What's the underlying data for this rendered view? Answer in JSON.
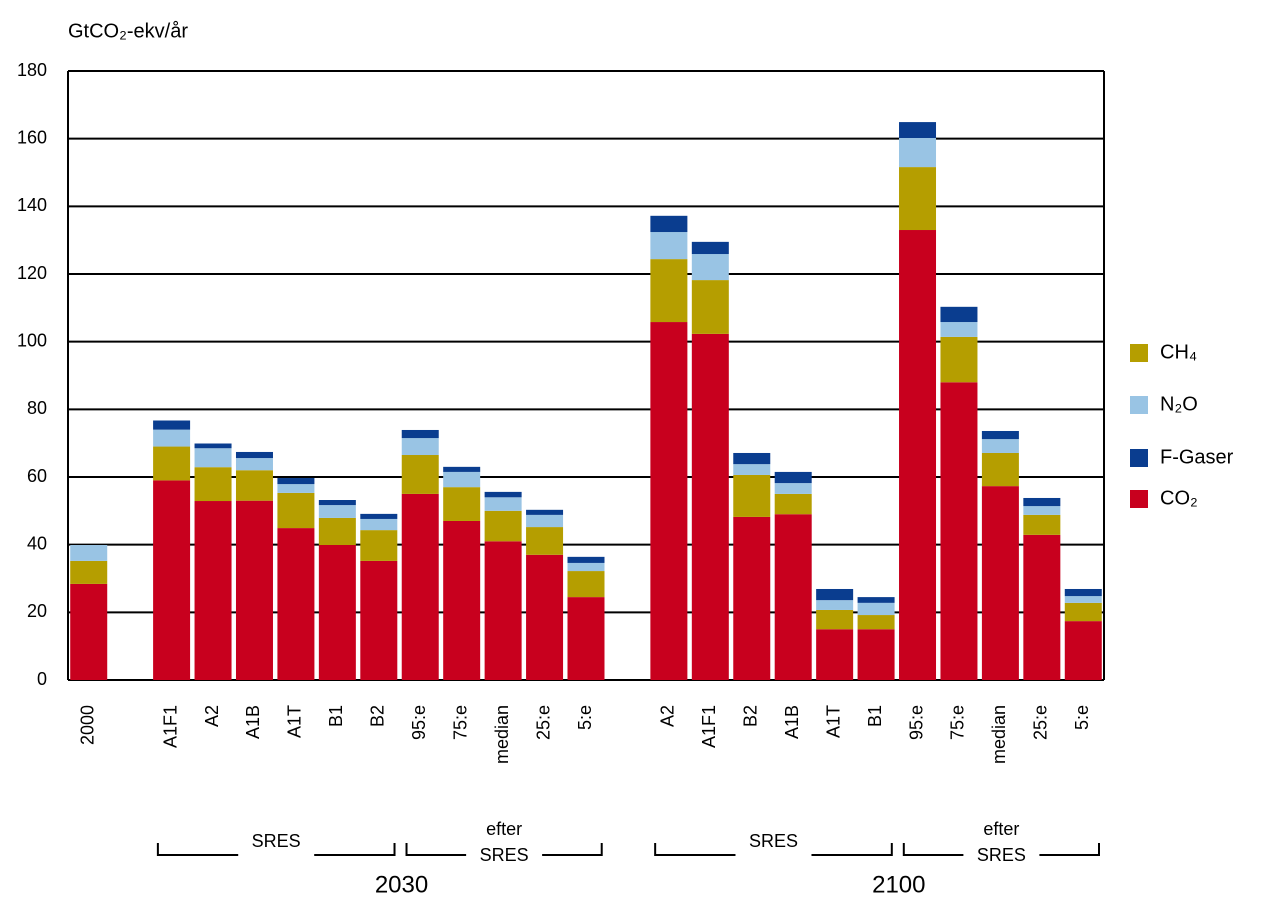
{
  "chart_data": {
    "type": "bar",
    "stacked": true,
    "y_label": "GtCO₂-ekv/år",
    "categories": [
      "2000",
      null,
      "A1F1",
      "A2",
      "A1B",
      "A1T",
      "B1",
      "B2",
      "95:e",
      "75:e",
      "median",
      "25:e",
      "5:e",
      null,
      "A2",
      "A1F1",
      "B2",
      "A1B",
      "A1T",
      "B1",
      "95:e",
      "75:e",
      "median",
      "25:e",
      "5:e"
    ],
    "series": [
      {
        "name": "CO₂",
        "color": "#c8001e",
        "values": [
          28.4,
          null,
          59,
          52.9,
          53,
          44.9,
          39.9,
          35.2,
          55,
          47,
          41,
          37,
          24.5,
          null,
          105.8,
          102.3,
          48.2,
          49,
          15,
          15,
          133,
          88,
          57.3,
          42.9,
          17.4
        ]
      },
      {
        "name": "CH₄",
        "color": "#b59e00",
        "values": [
          6.8,
          null,
          10,
          10,
          9,
          10.4,
          8,
          9.1,
          11.5,
          10,
          9,
          8.2,
          7.7,
          null,
          18.6,
          15.9,
          12.4,
          6,
          5.7,
          4.2,
          18.6,
          13.4,
          9.8,
          5.9,
          5.4
        ]
      },
      {
        "name": "N₂O",
        "color": "#99c4e4",
        "values": [
          4.7,
          null,
          5,
          5.6,
          3.6,
          2.6,
          3.8,
          3.3,
          5,
          4.5,
          4,
          3.6,
          2.4,
          null,
          8,
          7.7,
          3.2,
          3.2,
          2.9,
          3.6,
          8.6,
          4.4,
          4.1,
          2.6,
          2
        ]
      },
      {
        "name": "F-Gaser",
        "color": "#0a3d8f",
        "values": [
          0,
          null,
          2.7,
          1.4,
          1.8,
          1.8,
          1.5,
          1.5,
          2.4,
          1.5,
          1.6,
          1.5,
          1.8,
          null,
          4.8,
          3.6,
          3.3,
          3.3,
          3.3,
          1.7,
          4.7,
          4.5,
          2.4,
          2.4,
          2.1
        ]
      }
    ],
    "ylim": [
      0,
      180
    ],
    "yticks": [
      0,
      20,
      40,
      60,
      80,
      100,
      120,
      140,
      160,
      180
    ],
    "grid": true,
    "legend": "right",
    "group_labels": [
      "SRES",
      "efter SRES",
      "SRES",
      "efter SRES"
    ],
    "period_labels": [
      "2030",
      "2100"
    ]
  }
}
